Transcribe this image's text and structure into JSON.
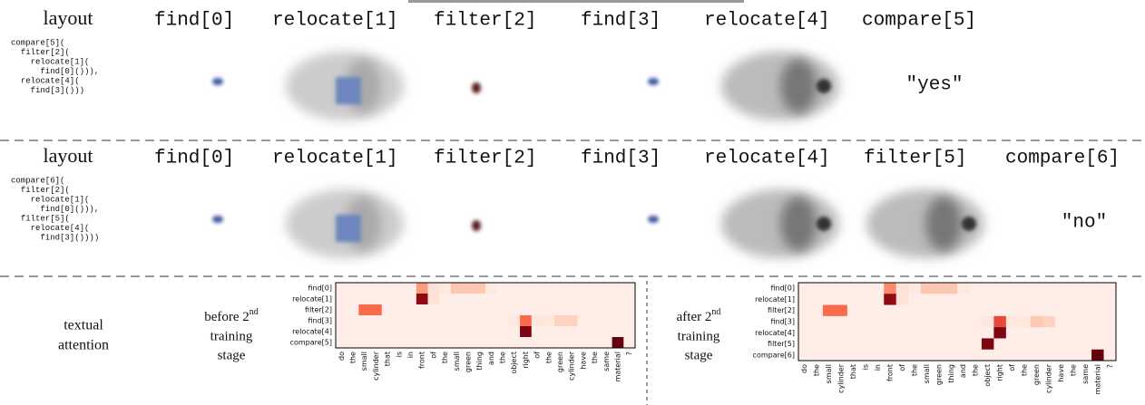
{
  "rows": [
    {
      "label": "layout",
      "code": [
        "compare[5](",
        "  filter[2](",
        "    relocate[1](",
        "      find[0]())),",
        "  relocate[4](",
        "    find[3]()))"
      ],
      "modules": [
        "find[0]",
        "relocate[1]",
        "filter[2]",
        "find[3]",
        "relocate[4]",
        "compare[5]"
      ],
      "answer": "\"yes\""
    },
    {
      "label": "layout",
      "code": [
        "compare[6](",
        "  filter[2](",
        "    relocate[1](",
        "      find[0]())),",
        "  filter[5](",
        "    relocate[4](",
        "      find[3]())))"
      ],
      "modules": [
        "find[0]",
        "relocate[1]",
        "filter[2]",
        "find[3]",
        "relocate[4]",
        "filter[5]",
        "compare[6]"
      ],
      "answer": "\"no\""
    }
  ],
  "textual_attention": {
    "label": [
      "textual",
      "attention"
    ],
    "colormap": [
      "#fff5f0",
      "#fcbba1",
      "#fb6a4a",
      "#cb181d",
      "#67000d"
    ],
    "words": [
      "do",
      "the",
      "small",
      "cylinder",
      "that",
      "is",
      "in",
      "front",
      "of",
      "the",
      "small",
      "green",
      "thing",
      "and",
      "the",
      "object",
      "right",
      "of",
      "the",
      "green",
      "cylinder",
      "have",
      "the",
      "same",
      "material",
      "?"
    ],
    "panels": [
      {
        "stage": [
          "before 2",
          "nd",
          "training",
          "stage"
        ],
        "modules": [
          "find[0]",
          "relocate[1]",
          "filter[2]",
          "find[3]",
          "relocate[4]",
          "compare[5]"
        ],
        "values": [
          [
            0.03,
            0.03,
            0.03,
            0.03,
            0.03,
            0.03,
            0.03,
            0.35,
            0.08,
            0.05,
            0.2,
            0.2,
            0.2,
            0.05,
            0.03,
            0.03,
            0.03,
            0.03,
            0.03,
            0.03,
            0.03,
            0.03,
            0.03,
            0.03,
            0.03,
            0.03
          ],
          [
            0.03,
            0.03,
            0.03,
            0.03,
            0.03,
            0.03,
            0.03,
            0.9,
            0.08,
            0.03,
            0.03,
            0.03,
            0.03,
            0.03,
            0.03,
            0.03,
            0.03,
            0.03,
            0.03,
            0.03,
            0.03,
            0.03,
            0.03,
            0.03,
            0.03,
            0.03
          ],
          [
            0.03,
            0.03,
            0.5,
            0.5,
            0.03,
            0.03,
            0.03,
            0.03,
            0.03,
            0.03,
            0.03,
            0.03,
            0.03,
            0.03,
            0.03,
            0.03,
            0.03,
            0.03,
            0.03,
            0.03,
            0.03,
            0.03,
            0.03,
            0.03,
            0.03,
            0.03
          ],
          [
            0.03,
            0.03,
            0.03,
            0.03,
            0.03,
            0.03,
            0.03,
            0.03,
            0.03,
            0.03,
            0.03,
            0.03,
            0.03,
            0.03,
            0.03,
            0.06,
            0.5,
            0.06,
            0.06,
            0.15,
            0.15,
            0.03,
            0.03,
            0.03,
            0.03,
            0.03
          ],
          [
            0.03,
            0.03,
            0.03,
            0.03,
            0.03,
            0.03,
            0.03,
            0.03,
            0.03,
            0.03,
            0.03,
            0.03,
            0.03,
            0.03,
            0.03,
            0.03,
            0.95,
            0.03,
            0.03,
            0.03,
            0.03,
            0.03,
            0.03,
            0.03,
            0.03,
            0.03
          ],
          [
            0.03,
            0.03,
            0.03,
            0.03,
            0.03,
            0.03,
            0.03,
            0.03,
            0.03,
            0.03,
            0.03,
            0.03,
            0.03,
            0.03,
            0.03,
            0.03,
            0.03,
            0.03,
            0.03,
            0.03,
            0.03,
            0.03,
            0.03,
            0.03,
            1,
            0.03
          ]
        ]
      },
      {
        "stage": [
          "after 2",
          "nd",
          "training",
          "stage"
        ],
        "modules": [
          "find[0]",
          "relocate[1]",
          "filter[2]",
          "find[3]",
          "relocate[4]",
          "filter[5]",
          "compare[6]"
        ],
        "values": [
          [
            0.03,
            0.03,
            0.03,
            0.03,
            0.03,
            0.03,
            0.03,
            0.4,
            0.08,
            0.05,
            0.2,
            0.2,
            0.2,
            0.05,
            0.03,
            0.03,
            0.03,
            0.03,
            0.03,
            0.03,
            0.03,
            0.03,
            0.03,
            0.03,
            0.03,
            0.03
          ],
          [
            0.03,
            0.03,
            0.03,
            0.03,
            0.03,
            0.03,
            0.03,
            0.9,
            0.08,
            0.03,
            0.03,
            0.03,
            0.03,
            0.03,
            0.03,
            0.03,
            0.03,
            0.03,
            0.03,
            0.03,
            0.03,
            0.03,
            0.03,
            0.03,
            0.03,
            0.03
          ],
          [
            0.03,
            0.03,
            0.5,
            0.5,
            0.03,
            0.03,
            0.03,
            0.03,
            0.03,
            0.03,
            0.03,
            0.03,
            0.03,
            0.03,
            0.03,
            0.03,
            0.03,
            0.03,
            0.03,
            0.03,
            0.03,
            0.03,
            0.03,
            0.03,
            0.03,
            0.03
          ],
          [
            0.03,
            0.03,
            0.03,
            0.03,
            0.03,
            0.03,
            0.03,
            0.03,
            0.03,
            0.03,
            0.03,
            0.03,
            0.03,
            0.03,
            0.03,
            0.06,
            0.6,
            0.06,
            0.06,
            0.2,
            0.15,
            0.03,
            0.03,
            0.03,
            0.03,
            0.03
          ],
          [
            0.03,
            0.03,
            0.03,
            0.03,
            0.03,
            0.03,
            0.03,
            0.03,
            0.03,
            0.03,
            0.03,
            0.03,
            0.03,
            0.03,
            0.03,
            0.03,
            0.95,
            0.03,
            0.03,
            0.03,
            0.03,
            0.03,
            0.03,
            0.03,
            0.03,
            0.03
          ],
          [
            0.03,
            0.03,
            0.03,
            0.03,
            0.03,
            0.03,
            0.03,
            0.03,
            0.03,
            0.03,
            0.03,
            0.03,
            0.03,
            0.03,
            0.03,
            0.95,
            0.03,
            0.03,
            0.03,
            0.03,
            0.03,
            0.03,
            0.03,
            0.03,
            0.03,
            0.03
          ],
          [
            0.03,
            0.03,
            0.03,
            0.03,
            0.03,
            0.03,
            0.03,
            0.03,
            0.03,
            0.03,
            0.03,
            0.03,
            0.03,
            0.03,
            0.03,
            0.03,
            0.03,
            0.03,
            0.03,
            0.03,
            0.03,
            0.03,
            0.03,
            0.03,
            1,
            0.03
          ]
        ]
      }
    ]
  }
}
